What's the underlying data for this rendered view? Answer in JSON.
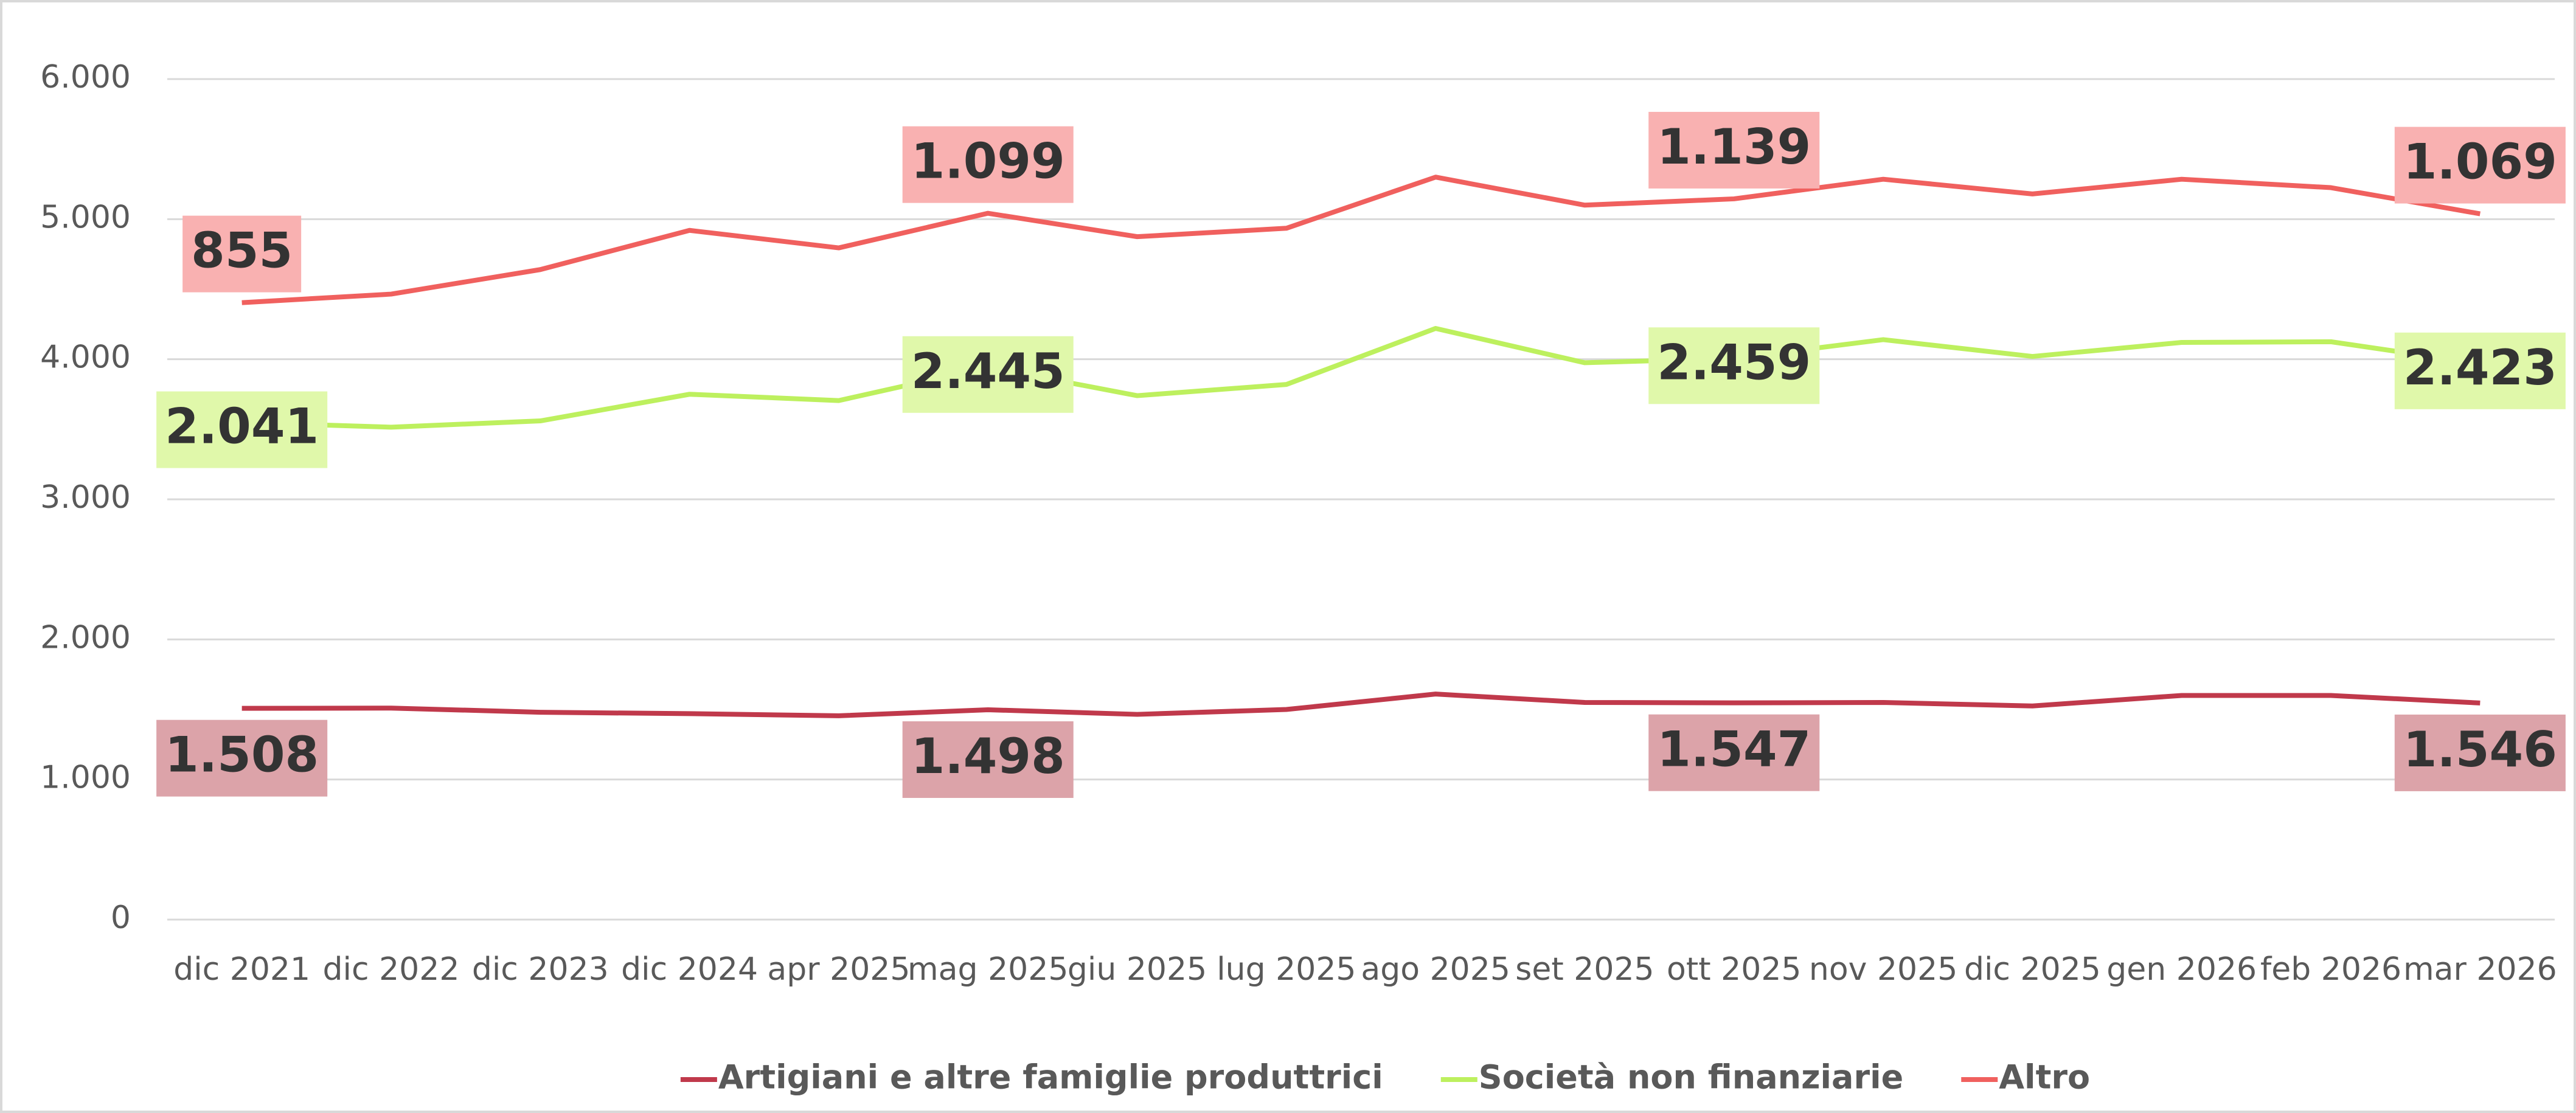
{
  "chart_data": {
    "type": "line",
    "stacked": true,
    "categories": [
      "dic 2021",
      "dic 2022",
      "dic 2023",
      "dic 2024",
      "apr 2025",
      "mag 2025",
      "giu 2025",
      "lug 2025",
      "ago 2025",
      "set 2025",
      "ott 2025",
      "nov 2025",
      "dic 2025",
      "gen 2026",
      "feb 2026",
      "mar 2026"
    ],
    "series": [
      {
        "name": "Artigiani e altre famiglie produttrici",
        "color": "#c0394b",
        "label_color": "#dca3a9",
        "values": [
          1508,
          1510,
          1480,
          1470,
          1455,
          1498,
          1465,
          1500,
          1610,
          1550,
          1547,
          1550,
          1525,
          1600,
          1600,
          1546
        ],
        "value_labels": [
          "1.508",
          null,
          null,
          null,
          null,
          "1.498",
          null,
          null,
          null,
          null,
          "1.547",
          null,
          null,
          null,
          null,
          "1.546"
        ]
      },
      {
        "name": "Società non finanziarie",
        "color": "#bdf05e",
        "label_color": "#e0f8aa",
        "values": [
          2041,
          2005,
          2080,
          2280,
          2250,
          2445,
          2275,
          2320,
          2610,
          2425,
          2459,
          2590,
          2495,
          2520,
          2525,
          2423
        ],
        "value_labels": [
          "2.041",
          null,
          null,
          null,
          null,
          "2.445",
          null,
          null,
          null,
          null,
          "2.459",
          null,
          null,
          null,
          null,
          "2.423"
        ]
      },
      {
        "name": "Altro",
        "color": "#f0605e",
        "label_color": "#f9b1b1",
        "values": [
          855,
          950,
          1080,
          1170,
          1090,
          1099,
          1135,
          1115,
          1080,
          1125,
          1139,
          1145,
          1160,
          1165,
          1100,
          1069
        ],
        "value_labels": [
          "855",
          null,
          null,
          null,
          null,
          "1.099",
          null,
          null,
          null,
          null,
          "1.139",
          null,
          null,
          null,
          null,
          "1.069"
        ]
      }
    ],
    "ylim": [
      0,
      6000
    ],
    "yticks": [
      0,
      {
        "value": 1000,
        "label": "1.000"
      },
      {
        "value": 2000,
        "label": "2.000"
      },
      {
        "value": 3000,
        "label": "3.000"
      },
      {
        "value": 4000,
        "label": "4.000"
      },
      {
        "value": 5000,
        "label": "5.000"
      },
      {
        "value": 6000,
        "label": "6.000"
      }
    ],
    "grid": true,
    "legend": "bottom"
  }
}
